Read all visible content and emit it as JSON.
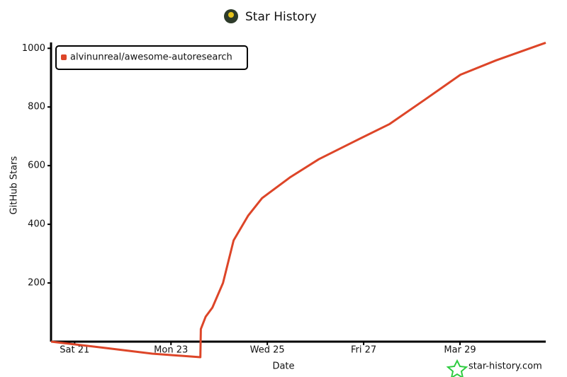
{
  "chart_data": {
    "type": "line",
    "title": "Star History",
    "xlabel": "Date",
    "ylabel": "GitHub Stars",
    "watermark": "star-history.com",
    "xlim": [
      20.51,
      30.78
    ],
    "xticks": [
      {
        "value": 21,
        "label": "Sat 21"
      },
      {
        "value": 23,
        "label": "Mon 23"
      },
      {
        "value": 25,
        "label": "Wed 25"
      },
      {
        "value": 27,
        "label": "Fri 27"
      },
      {
        "value": 29,
        "label": "Mar 29"
      }
    ],
    "ylim": [
      0,
      1020
    ],
    "yticks": [
      200,
      400,
      600,
      800,
      1000
    ],
    "legend": "top-left",
    "series": [
      {
        "name": "alvinunreal/awesome-autoresearch",
        "color": "#dd4528",
        "x": [
          20.51,
          21.66,
          22.61,
          23.61,
          23.62,
          23.72,
          23.86,
          24.08,
          24.3,
          24.6,
          24.89,
          25.48,
          26.07,
          26.8,
          27.54,
          28.28,
          29.01,
          29.75,
          30.78
        ],
        "values": [
          0,
          -22,
          -41,
          -53,
          43,
          85,
          116,
          200,
          345,
          429,
          489,
          561,
          622,
          682,
          742,
          826,
          910,
          959,
          1019
        ]
      }
    ]
  }
}
